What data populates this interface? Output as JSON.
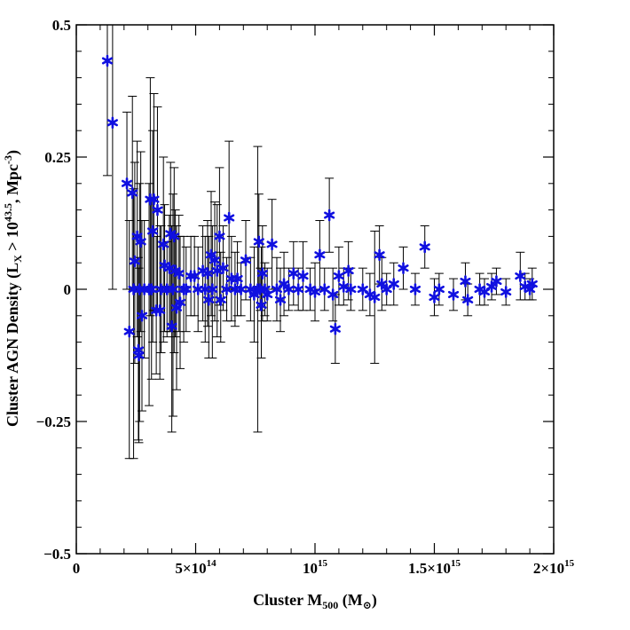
{
  "chart_data": {
    "type": "scatter",
    "title": "",
    "xlabel": {
      "main": "Cluster M",
      "sub": "500",
      "rest": " (M",
      "sun": "⊙",
      "end": ")"
    },
    "ylabel": {
      "main": "Cluster AGN Density (L",
      "sub": "X",
      "mid": " > 10",
      "sup": "43.5",
      "rest": ",  Mpc",
      "sup2": "-3",
      "end": ")"
    },
    "xlim": [
      0,
      2000000000000000.0
    ],
    "ylim": [
      -0.5,
      0.5
    ],
    "x_ticks": [
      {
        "value": 0,
        "label": "0"
      },
      {
        "value": 500000000000000.0,
        "label": "5×10",
        "exp": "14"
      },
      {
        "value": 1000000000000000.0,
        "label": "10",
        "exp": "15"
      },
      {
        "value": 1500000000000000.0,
        "label": "1.5×10",
        "exp": "15"
      },
      {
        "value": 2000000000000000.0,
        "label": "2×10",
        "exp": "15"
      }
    ],
    "y_ticks": [
      {
        "value": -0.5,
        "label": "−0.5"
      },
      {
        "value": -0.25,
        "label": "−0.25"
      },
      {
        "value": 0,
        "label": "0"
      },
      {
        "value": 0.25,
        "label": "0.25"
      },
      {
        "value": 0.5,
        "label": "0.5"
      }
    ],
    "x_minor_step": 100000000000000.0,
    "y_minor_step": 0.05,
    "marker": "star",
    "marker_color": "#1010e0",
    "errorbar_color": "#000000",
    "points": [
      {
        "x": 130000000000000.0,
        "y": 0.432,
        "lo": 0.215,
        "hi": 0.65
      },
      {
        "x": 152000000000000.0,
        "y": 0.315,
        "lo": 0.0,
        "hi": 0.55
      },
      {
        "x": 212000000000000.0,
        "y": 0.2,
        "lo": 0.0,
        "hi": 0.335
      },
      {
        "x": 222000000000000.0,
        "y": -0.08,
        "lo": -0.32,
        "hi": 0.13
      },
      {
        "x": 235000000000000.0,
        "y": 0.182,
        "lo": 0.0,
        "hi": 0.365
      },
      {
        "x": 240000000000000.0,
        "y": 0.0,
        "lo": -0.32,
        "hi": 0.19
      },
      {
        "x": 245000000000000.0,
        "y": 0.053,
        "lo": -0.14,
        "hi": 0.24
      },
      {
        "x": 255000000000000.0,
        "y": 0.1,
        "lo": -0.09,
        "hi": 0.28
      },
      {
        "x": 260000000000000.0,
        "y": -0.115,
        "lo": -0.285,
        "hi": 0.06
      },
      {
        "x": 262000000000000.0,
        "y": -0.125,
        "lo": -0.29,
        "hi": 0.04
      },
      {
        "x": 265000000000000.0,
        "y": 0.0,
        "lo": -0.25,
        "hi": 0.2
      },
      {
        "x": 270000000000000.0,
        "y": 0.09,
        "lo": -0.08,
        "hi": 0.26
      },
      {
        "x": 275000000000000.0,
        "y": -0.05,
        "lo": -0.23,
        "hi": 0.13
      },
      {
        "x": 285000000000000.0,
        "y": 0.0,
        "lo": -0.13,
        "hi": 0.13
      },
      {
        "x": 305000000000000.0,
        "y": 0.0,
        "lo": -0.22,
        "hi": 0.2
      },
      {
        "x": 310000000000000.0,
        "y": 0.17,
        "lo": -0.05,
        "hi": 0.4
      },
      {
        "x": 315000000000000.0,
        "y": 0.0,
        "lo": -0.17,
        "hi": 0.17
      },
      {
        "x": 320000000000000.0,
        "y": 0.11,
        "lo": -0.1,
        "hi": 0.3
      },
      {
        "x": 325000000000000.0,
        "y": 0.17,
        "lo": -0.04,
        "hi": 0.37
      },
      {
        "x": 335000000000000.0,
        "y": -0.04,
        "lo": -0.16,
        "hi": 0.1
      },
      {
        "x": 340000000000000.0,
        "y": 0.15,
        "lo": -0.04,
        "hi": 0.345
      },
      {
        "x": 350000000000000.0,
        "y": -0.04,
        "lo": -0.17,
        "hi": 0.12
      },
      {
        "x": 355000000000000.0,
        "y": 0.0,
        "lo": -0.12,
        "hi": 0.12
      },
      {
        "x": 365000000000000.0,
        "y": 0.085,
        "lo": -0.1,
        "hi": 0.25
      },
      {
        "x": 370000000000000.0,
        "y": 0.045,
        "lo": -0.08,
        "hi": 0.16
      },
      {
        "x": 380000000000000.0,
        "y": 0.0,
        "lo": -0.09,
        "hi": 0.09
      },
      {
        "x": 390000000000000.0,
        "y": 0.04,
        "lo": -0.08,
        "hi": 0.14
      },
      {
        "x": 395000000000000.0,
        "y": 0.105,
        "lo": -0.08,
        "hi": 0.24
      },
      {
        "x": 400000000000000.0,
        "y": -0.07,
        "lo": -0.27,
        "hi": 0.12
      },
      {
        "x": 405000000000000.0,
        "y": 0.0,
        "lo": -0.24,
        "hi": 0.18
      },
      {
        "x": 410000000000000.0,
        "y": 0.1,
        "lo": -0.12,
        "hi": 0.23
      },
      {
        "x": 415000000000000.0,
        "y": 0.035,
        "lo": -0.09,
        "hi": 0.15
      },
      {
        "x": 420000000000000.0,
        "y": -0.035,
        "lo": -0.19,
        "hi": 0.12
      },
      {
        "x": 430000000000000.0,
        "y": 0.03,
        "lo": -0.08,
        "hi": 0.14
      },
      {
        "x": 435000000000000.0,
        "y": -0.025,
        "lo": -0.15,
        "hi": 0.1
      },
      {
        "x": 450000000000000.0,
        "y": 0.0,
        "lo": -0.1,
        "hi": 0.1
      },
      {
        "x": 460000000000000.0,
        "y": 0.0,
        "lo": -0.08,
        "hi": 0.08
      },
      {
        "x": 480000000000000.0,
        "y": 0.025,
        "lo": -0.05,
        "hi": 0.1
      },
      {
        "x": 495000000000000.0,
        "y": 0.025,
        "lo": -0.05,
        "hi": 0.1
      },
      {
        "x": 510000000000000.0,
        "y": 0.0,
        "lo": -0.08,
        "hi": 0.08
      },
      {
        "x": 530000000000000.0,
        "y": 0.035,
        "lo": -0.06,
        "hi": 0.12
      },
      {
        "x": 540000000000000.0,
        "y": 0.0,
        "lo": -0.1,
        "hi": 0.1
      },
      {
        "x": 550000000000000.0,
        "y": 0.03,
        "lo": -0.07,
        "hi": 0.13
      },
      {
        "x": 555000000000000.0,
        "y": -0.02,
        "lo": -0.13,
        "hi": 0.1
      },
      {
        "x": 565000000000000.0,
        "y": 0.065,
        "lo": -0.05,
        "hi": 0.185
      },
      {
        "x": 570000000000000.0,
        "y": 0.0,
        "lo": -0.13,
        "hi": 0.12
      },
      {
        "x": 580000000000000.0,
        "y": 0.055,
        "lo": -0.06,
        "hi": 0.165
      },
      {
        "x": 590000000000000.0,
        "y": 0.035,
        "lo": -0.09,
        "hi": 0.16
      },
      {
        "x": 600000000000000.0,
        "y": 0.1,
        "lo": -0.03,
        "hi": 0.23
      },
      {
        "x": 605000000000000.0,
        "y": -0.02,
        "lo": -0.1,
        "hi": 0.07
      },
      {
        "x": 615000000000000.0,
        "y": 0.04,
        "lo": -0.04,
        "hi": 0.12
      },
      {
        "x": 630000000000000.0,
        "y": 0.0,
        "lo": -0.06,
        "hi": 0.06
      },
      {
        "x": 640000000000000.0,
        "y": 0.135,
        "lo": 0.0,
        "hi": 0.28
      },
      {
        "x": 650000000000000.0,
        "y": 0.02,
        "lo": -0.06,
        "hi": 0.1
      },
      {
        "x": 665000000000000.0,
        "y": 0.0,
        "lo": -0.07,
        "hi": 0.07
      },
      {
        "x": 675000000000000.0,
        "y": 0.02,
        "lo": -0.05,
        "hi": 0.09
      },
      {
        "x": 690000000000000.0,
        "y": 0.0,
        "lo": -0.05,
        "hi": 0.05
      },
      {
        "x": 710000000000000.0,
        "y": 0.055,
        "lo": -0.02,
        "hi": 0.13
      },
      {
        "x": 730000000000000.0,
        "y": 0.0,
        "lo": -0.06,
        "hi": 0.06
      },
      {
        "x": 745000000000000.0,
        "y": -0.01,
        "lo": -0.1,
        "hi": 0.08
      },
      {
        "x": 760000000000000.0,
        "y": 0.0,
        "lo": -0.27,
        "hi": 0.27
      },
      {
        "x": 765000000000000.0,
        "y": 0.09,
        "lo": 0.0,
        "hi": 0.18
      },
      {
        "x": 770000000000000.0,
        "y": 0.0,
        "lo": -0.04,
        "hi": 0.04
      },
      {
        "x": 775000000000000.0,
        "y": -0.03,
        "lo": -0.13,
        "hi": 0.08
      },
      {
        "x": 780000000000000.0,
        "y": 0.03,
        "lo": -0.06,
        "hi": 0.12
      },
      {
        "x": 790000000000000.0,
        "y": 0.0,
        "lo": -0.05,
        "hi": 0.05
      },
      {
        "x": 800000000000000.0,
        "y": -0.01,
        "lo": -0.06,
        "hi": 0.04
      },
      {
        "x": 820000000000000.0,
        "y": 0.085,
        "lo": 0.0,
        "hi": 0.17
      },
      {
        "x": 840000000000000.0,
        "y": 0.0,
        "lo": -0.06,
        "hi": 0.06
      },
      {
        "x": 855000000000000.0,
        "y": -0.02,
        "lo": -0.08,
        "hi": 0.04
      },
      {
        "x": 870000000000000.0,
        "y": 0.01,
        "lo": -0.05,
        "hi": 0.07
      },
      {
        "x": 890000000000000.0,
        "y": 0.0,
        "lo": -0.04,
        "hi": 0.04
      },
      {
        "x": 910000000000000.0,
        "y": 0.03,
        "lo": -0.03,
        "hi": 0.09
      },
      {
        "x": 930000000000000.0,
        "y": 0.0,
        "lo": -0.04,
        "hi": 0.04
      },
      {
        "x": 950000000000000.0,
        "y": 0.025,
        "lo": -0.04,
        "hi": 0.09
      },
      {
        "x": 980000000000000.0,
        "y": 0.0,
        "lo": -0.04,
        "hi": 0.04
      },
      {
        "x": 1000000000000000.0,
        "y": -0.005,
        "lo": -0.06,
        "hi": 0.05
      },
      {
        "x": 1020000000000000.0,
        "y": 0.065,
        "lo": 0.0,
        "hi": 0.13
      },
      {
        "x": 1040000000000000.0,
        "y": 0.0,
        "lo": -0.04,
        "hi": 0.04
      },
      {
        "x": 1060000000000000.0,
        "y": 0.14,
        "lo": 0.07,
        "hi": 0.21
      },
      {
        "x": 1075000000000000.0,
        "y": -0.01,
        "lo": -0.06,
        "hi": 0.04
      },
      {
        "x": 1085000000000000.0,
        "y": -0.075,
        "lo": -0.14,
        "hi": -0.01
      },
      {
        "x": 1100000000000000.0,
        "y": 0.025,
        "lo": -0.03,
        "hi": 0.08
      },
      {
        "x": 1120000000000000.0,
        "y": 0.005,
        "lo": -0.03,
        "hi": 0.04
      },
      {
        "x": 1140000000000000.0,
        "y": 0.035,
        "lo": -0.02,
        "hi": 0.09
      },
      {
        "x": 1150000000000000.0,
        "y": 0.0,
        "lo": -0.04,
        "hi": 0.04
      },
      {
        "x": 1200000000000000.0,
        "y": 0.0,
        "lo": -0.04,
        "hi": 0.04
      },
      {
        "x": 1230000000000000.0,
        "y": -0.01,
        "lo": -0.05,
        "hi": 0.03
      },
      {
        "x": 1250000000000000.0,
        "y": -0.015,
        "lo": -0.14,
        "hi": 0.11
      },
      {
        "x": 1270000000000000.0,
        "y": 0.065,
        "lo": 0.01,
        "hi": 0.12
      },
      {
        "x": 1280000000000000.0,
        "y": 0.01,
        "lo": -0.04,
        "hi": 0.06
      },
      {
        "x": 1300000000000000.0,
        "y": 0.0,
        "lo": -0.03,
        "hi": 0.03
      },
      {
        "x": 1330000000000000.0,
        "y": 0.01,
        "lo": -0.03,
        "hi": 0.05
      },
      {
        "x": 1370000000000000.0,
        "y": 0.04,
        "lo": 0.0,
        "hi": 0.08
      },
      {
        "x": 1420000000000000.0,
        "y": 0.0,
        "lo": -0.03,
        "hi": 0.03
      },
      {
        "x": 1460000000000000.0,
        "y": 0.08,
        "lo": 0.04,
        "hi": 0.12
      },
      {
        "x": 1500000000000000.0,
        "y": -0.015,
        "lo": -0.05,
        "hi": 0.02
      },
      {
        "x": 1520000000000000.0,
        "y": 0.0,
        "lo": -0.03,
        "hi": 0.03
      },
      {
        "x": 1580000000000000.0,
        "y": -0.01,
        "lo": -0.04,
        "hi": 0.02
      },
      {
        "x": 1630000000000000.0,
        "y": 0.015,
        "lo": -0.02,
        "hi": 0.05
      },
      {
        "x": 1640000000000000.0,
        "y": -0.02,
        "lo": -0.05,
        "hi": 0.01
      },
      {
        "x": 1690000000000000.0,
        "y": 0.0,
        "lo": -0.03,
        "hi": 0.03
      },
      {
        "x": 1710000000000000.0,
        "y": -0.005,
        "lo": -0.03,
        "hi": 0.02
      },
      {
        "x": 1740000000000000.0,
        "y": 0.005,
        "lo": -0.02,
        "hi": 0.03
      },
      {
        "x": 1760000000000000.0,
        "y": 0.015,
        "lo": -0.01,
        "hi": 0.04
      },
      {
        "x": 1800000000000000.0,
        "y": -0.005,
        "lo": -0.03,
        "hi": 0.02
      },
      {
        "x": 1860000000000000.0,
        "y": 0.025,
        "lo": -0.02,
        "hi": 0.07
      },
      {
        "x": 1880000000000000.0,
        "y": 0.005,
        "lo": -0.02,
        "hi": 0.03
      },
      {
        "x": 1900000000000000.0,
        "y": 0.0,
        "lo": -0.02,
        "hi": 0.02
      },
      {
        "x": 1910000000000000.0,
        "y": 0.01,
        "lo": -0.02,
        "hi": 0.04
      }
    ]
  }
}
